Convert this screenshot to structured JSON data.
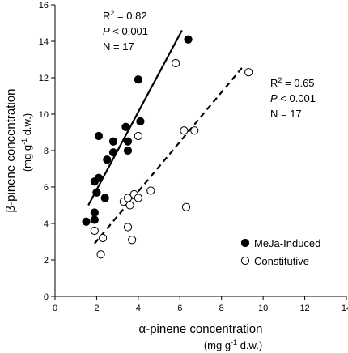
{
  "chart_data": {
    "type": "scatter",
    "xlabel": "α-pinene concentration",
    "xunit_prefix": "(mg g",
    "xunit_sup": "-1",
    "xunit_suffix": " d.w.)",
    "ylabel": "β-pinene concentration",
    "yunit_prefix": "(mg g",
    "yunit_sup": "-1",
    "yunit_suffix": " d.w.)",
    "xlim": [
      0,
      14
    ],
    "ylim": [
      0,
      16
    ],
    "xticks": [
      0,
      2,
      4,
      6,
      8,
      10,
      12,
      14
    ],
    "yticks": [
      0,
      2,
      4,
      6,
      8,
      10,
      12,
      14,
      16
    ],
    "grid": false,
    "legend_position": "bottom-right",
    "series": [
      {
        "name": "MeJa-Induced",
        "marker": "filled-circle",
        "color": "#000000",
        "points": [
          [
            1.5,
            4.1
          ],
          [
            1.9,
            4.2
          ],
          [
            1.9,
            4.6
          ],
          [
            1.9,
            6.3
          ],
          [
            2.0,
            5.7
          ],
          [
            2.1,
            6.5
          ],
          [
            2.1,
            8.8
          ],
          [
            2.4,
            5.4
          ],
          [
            2.5,
            7.5
          ],
          [
            2.8,
            8.5
          ],
          [
            2.8,
            7.9
          ],
          [
            3.4,
            9.3
          ],
          [
            3.5,
            8.0
          ],
          [
            4.0,
            11.9
          ],
          [
            4.1,
            9.6
          ],
          [
            3.5,
            8.5
          ],
          [
            6.4,
            14.1
          ]
        ],
        "fit": {
          "x": [
            1.6,
            6.1
          ],
          "y": [
            5.0,
            14.6
          ],
          "style": "solid"
        },
        "stats": {
          "r2_base": "R",
          "r2_sup": "2",
          "r2_value": " = 0.82",
          "p_letter": "P",
          "p_value": " < 0.001",
          "n": "N = 17"
        }
      },
      {
        "name": "Constitutive",
        "marker": "open-circle",
        "color": "#000000",
        "points": [
          [
            1.9,
            3.6
          ],
          [
            2.2,
            2.3
          ],
          [
            2.3,
            3.2
          ],
          [
            3.3,
            5.2
          ],
          [
            3.5,
            5.4
          ],
          [
            3.5,
            3.8
          ],
          [
            3.6,
            5.0
          ],
          [
            3.7,
            3.1
          ],
          [
            3.8,
            5.6
          ],
          [
            4.0,
            5.4
          ],
          [
            4.0,
            8.8
          ],
          [
            4.6,
            5.8
          ],
          [
            5.8,
            12.8
          ],
          [
            6.2,
            9.1
          ],
          [
            6.3,
            4.9
          ],
          [
            6.7,
            9.1
          ],
          [
            9.3,
            12.3
          ]
        ],
        "fit": {
          "x": [
            1.9,
            9.1
          ],
          "y": [
            2.9,
            12.7
          ],
          "style": "dashed"
        },
        "stats": {
          "r2_base": "R",
          "r2_sup": "2",
          "r2_value": " = 0.65",
          "p_letter": "P",
          "p_value": " < 0.001",
          "n": "N = 17"
        }
      }
    ]
  }
}
